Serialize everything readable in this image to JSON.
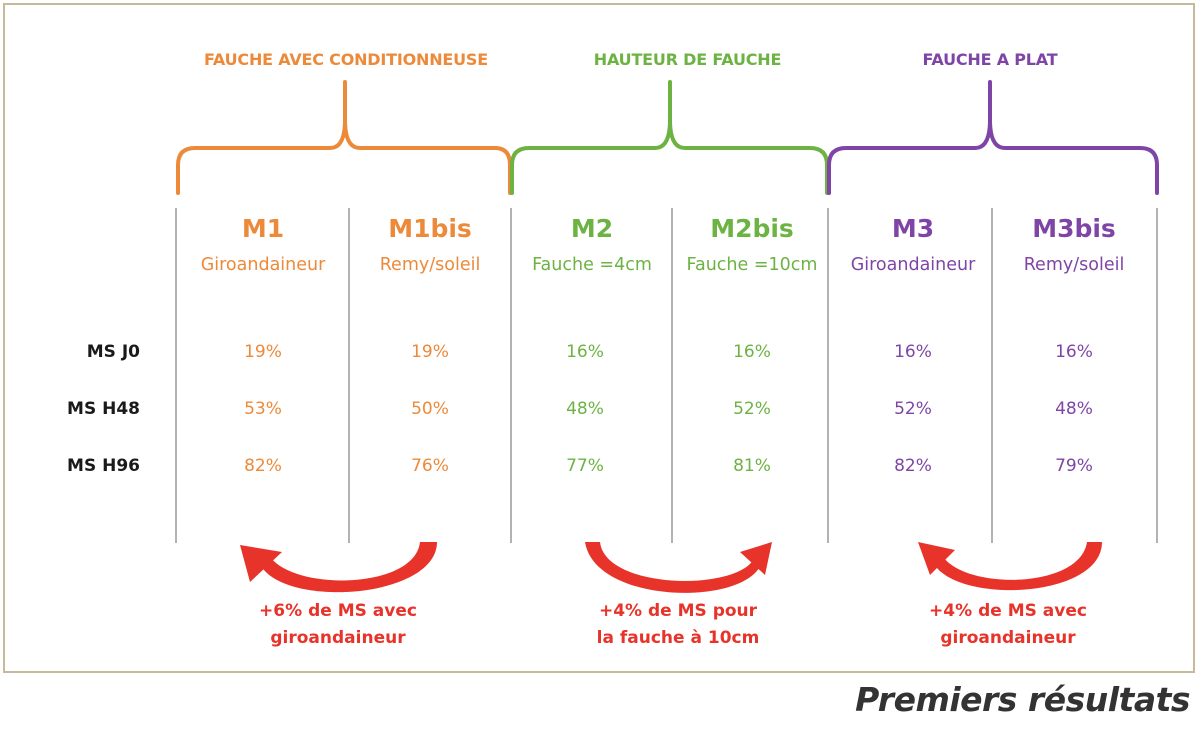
{
  "colors": {
    "orange": "#ec8a3a",
    "green": "#6cb343",
    "purple": "#7f45a6",
    "arrow_red": "#e8332a",
    "divider": "#999999"
  },
  "groups": [
    {
      "title": "FAUCHE AVEC CONDITIONNEUSE",
      "color": "orange"
    },
    {
      "title": "HAUTEUR DE FAUCHE",
      "color": "green"
    },
    {
      "title": "FAUCHE A PLAT",
      "color": "purple"
    }
  ],
  "columns": [
    {
      "code": "M1",
      "method": "Giroandaineur",
      "values": [
        "19%",
        "53%",
        "82%"
      ]
    },
    {
      "code": "M1bis",
      "method": "Remy/soleil",
      "values": [
        "19%",
        "50%",
        "76%"
      ]
    },
    {
      "code": "M2",
      "method": "Fauche =4cm",
      "values": [
        "16%",
        "48%",
        "77%"
      ]
    },
    {
      "code": "M2bis",
      "method": "Fauche =10cm",
      "values": [
        "16%",
        "52%",
        "81%"
      ]
    },
    {
      "code": "M3",
      "method": "Giroandaineur",
      "values": [
        "16%",
        "52%",
        "82%"
      ]
    },
    {
      "code": "M3bis",
      "method": "Remy/soleil",
      "values": [
        "16%",
        "48%",
        "79%"
      ]
    }
  ],
  "rows": [
    "MS J0",
    "MS H48",
    "MS H96"
  ],
  "notes": [
    {
      "line1": "+6% de MS avec",
      "line2": "giroandaineur"
    },
    {
      "line1": "+4% de MS pour",
      "line2": "la fauche à 10cm"
    },
    {
      "line1": "+4% de MS avec",
      "line2": "giroandaineur"
    }
  ],
  "arrows": [
    {
      "from": "M1bis",
      "to": "M1"
    },
    {
      "from": "M2",
      "to": "M2bis"
    },
    {
      "from": "M3bis",
      "to": "M3"
    }
  ],
  "footer": "Premiers résultats"
}
